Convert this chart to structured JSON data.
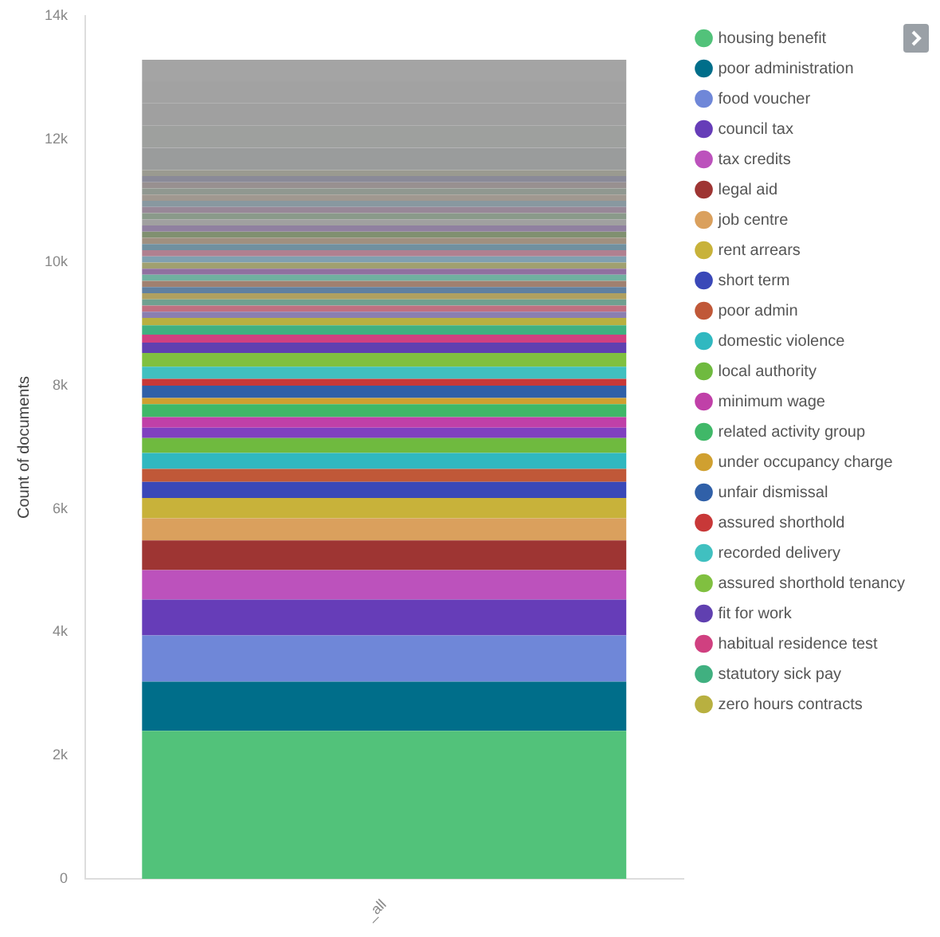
{
  "chart_data": {
    "type": "bar",
    "stacked": true,
    "ylabel": "Count of documents",
    "categories": [
      "_all"
    ],
    "ylim": [
      0,
      14000
    ],
    "yticks": [
      0,
      {
        "value": 2000,
        "label": "2k"
      },
      {
        "value": 4000,
        "label": "4k"
      },
      {
        "value": 6000,
        "label": "6k"
      },
      {
        "value": 8000,
        "label": "8k"
      },
      {
        "value": 10000,
        "label": "10k"
      },
      {
        "value": 12000,
        "label": "12k"
      },
      {
        "value": 14000,
        "label": "14k"
      }
    ],
    "grid": false,
    "legend": "top right",
    "series": [
      {
        "name": "housing benefit",
        "color": "#52c27a",
        "values": [
          2400
        ]
      },
      {
        "name": "poor administration",
        "color": "#006e8a",
        "values": [
          800
        ]
      },
      {
        "name": "food voucher",
        "color": "#6f87d8",
        "values": [
          750
        ]
      },
      {
        "name": "council tax",
        "color": "#663db8",
        "values": [
          580
        ]
      },
      {
        "name": "tax credits",
        "color": "#bc52bc",
        "values": [
          480
        ]
      },
      {
        "name": "legal aid",
        "color": "#9e3533",
        "values": [
          480
        ]
      },
      {
        "name": "job centre",
        "color": "#daa05d",
        "values": [
          360
        ]
      },
      {
        "name": "rent arrears",
        "color": "#c8b23a",
        "values": [
          330
        ]
      },
      {
        "name": "short term",
        "color": "#3a48b8",
        "values": [
          260
        ]
      },
      {
        "name": "poor admin",
        "color": "#c05838",
        "values": [
          210
        ]
      },
      {
        "name": "domestic violence",
        "color": "#30b8c0",
        "values": [
          260
        ]
      },
      {
        "name": "local authority",
        "color": "#6fba3f",
        "values": [
          240
        ]
      },
      {
        "color": "#8040c0",
        "values": [
          170
        ]
      },
      {
        "name": "minimum wage",
        "color": "#c040a8",
        "values": [
          170
        ]
      },
      {
        "name": "related activity group",
        "color": "#40b868",
        "values": [
          210
        ]
      },
      {
        "name": "under occupancy charge",
        "color": "#d0a030",
        "values": [
          100
        ]
      },
      {
        "name": "unfair dismissal",
        "color": "#3060a8",
        "values": [
          200
        ]
      },
      {
        "name": "assured shorthold",
        "color": "#c83838",
        "values": [
          110
        ]
      },
      {
        "name": "recorded delivery",
        "color": "#40c0c0",
        "values": [
          200
        ]
      },
      {
        "name": "assured shorthold tenancy",
        "color": "#80c040",
        "values": [
          220
        ]
      },
      {
        "name": "fit for work",
        "color": "#6040b0",
        "values": [
          170
        ]
      },
      {
        "name": "habitual residence test",
        "color": "#d04080",
        "values": [
          130
        ]
      },
      {
        "name": "statutory sick pay",
        "color": "#40b080",
        "values": [
          150
        ]
      },
      {
        "name": "zero hours contracts",
        "color": "#b8b040",
        "values": [
          120
        ]
      },
      {
        "color": "#8a7fb0",
        "values": [
          100
        ]
      },
      {
        "color": "#c07080",
        "values": [
          100
        ]
      },
      {
        "color": "#70a090",
        "values": [
          100
        ]
      },
      {
        "color": "#b0a060",
        "values": [
          100
        ]
      },
      {
        "color": "#6080a0",
        "values": [
          100
        ]
      },
      {
        "color": "#a08070",
        "values": [
          100
        ]
      },
      {
        "color": "#70b0a0",
        "values": [
          100
        ]
      },
      {
        "color": "#9070a0",
        "values": [
          100
        ]
      },
      {
        "color": "#a0a070",
        "values": [
          100
        ]
      },
      {
        "color": "#80a0b0",
        "values": [
          100
        ]
      },
      {
        "color": "#b08090",
        "values": [
          100
        ]
      },
      {
        "color": "#7090a0",
        "values": [
          100
        ]
      },
      {
        "color": "#a09080",
        "values": [
          100
        ]
      },
      {
        "color": "#809070",
        "values": [
          100
        ]
      },
      {
        "color": "#9080a0",
        "values": [
          100
        ]
      },
      {
        "color": "#a0a0a0",
        "values": [
          100
        ]
      },
      {
        "color": "#8a9a8a",
        "values": [
          100
        ]
      },
      {
        "color": "#988898",
        "values": [
          100
        ]
      },
      {
        "color": "#8898a0",
        "values": [
          100
        ]
      },
      {
        "color": "#a09890",
        "values": [
          100
        ]
      },
      {
        "color": "#909890",
        "values": [
          100
        ]
      },
      {
        "color": "#989090",
        "values": [
          100
        ]
      },
      {
        "color": "#8a8a98",
        "values": [
          100
        ]
      },
      {
        "color": "#9a9a90",
        "values": [
          100
        ]
      },
      {
        "color": "#9a9c9c",
        "values": [
          360
        ]
      },
      {
        "color": "#9ea09e",
        "values": [
          360
        ]
      },
      {
        "color": "#a0a0a0",
        "values": [
          360
        ]
      },
      {
        "color": "#a2a2a2",
        "values": [
          360
        ]
      },
      {
        "color": "#a4a4a4",
        "values": [
          350
        ]
      }
    ]
  }
}
